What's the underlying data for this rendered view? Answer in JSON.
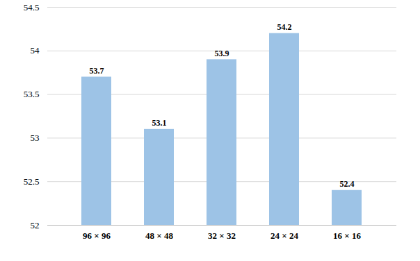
{
  "chart_data": {
    "type": "bar",
    "categories": [
      "96 × 96",
      "48 × 48",
      "32 × 32",
      "24 × 24",
      "16 × 16"
    ],
    "values": [
      53.7,
      53.1,
      53.9,
      54.2,
      52.4
    ],
    "color": "#9dc3e6",
    "ylim": [
      52,
      54.5
    ],
    "yticks": [
      52,
      52.5,
      53,
      53.5,
      54,
      54.5
    ],
    "grid": true,
    "data_labels": true
  }
}
